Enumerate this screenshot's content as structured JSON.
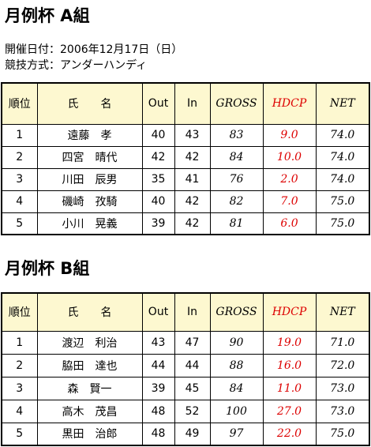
{
  "sections": [
    {
      "title": "月例杯 A組",
      "info": [
        "開催日付：2006年12月17日（日）",
        "競技方式：アンダーハンディ"
      ],
      "table": {
        "header": [
          "順位",
          "氏　　名",
          "Out",
          "In",
          "GROSS",
          "HDCP",
          "NET"
        ],
        "rows": [
          [
            "1",
            "遠藤　孝",
            "40",
            "43",
            "83",
            "9.0",
            "74.0"
          ],
          [
            "2",
            "四宮　晴代",
            "42",
            "42",
            "84",
            "10.0",
            "74.0"
          ],
          [
            "3",
            "川田　辰男",
            "35",
            "41",
            "76",
            "2.0",
            "74.0"
          ],
          [
            "4",
            "磯崎　孜騎",
            "40",
            "42",
            "82",
            "7.0",
            "75.0"
          ],
          [
            "5",
            "小川　晃義",
            "39",
            "42",
            "81",
            "6.0",
            "75.0"
          ]
        ]
      }
    },
    {
      "title": "月例杯 B組",
      "table": {
        "header": [
          "順位",
          "氏　　名",
          "Out",
          "In",
          "GROSS",
          "HDCP",
          "NET"
        ],
        "rows": [
          [
            "1",
            "渡辺　利治",
            "43",
            "47",
            "90",
            "19.0",
            "71.0"
          ],
          [
            "2",
            "脇田　達也",
            "44",
            "44",
            "88",
            "16.0",
            "72.0"
          ],
          [
            "3",
            "森　賢一",
            "39",
            "45",
            "84",
            "11.0",
            "73.0"
          ],
          [
            "4",
            "高木　茂昌",
            "48",
            "52",
            "100",
            "27.0",
            "73.0"
          ],
          [
            "5",
            "黒田　治郎",
            "48",
            "49",
            "97",
            "22.0",
            "75.0"
          ]
        ]
      }
    }
  ]
}
